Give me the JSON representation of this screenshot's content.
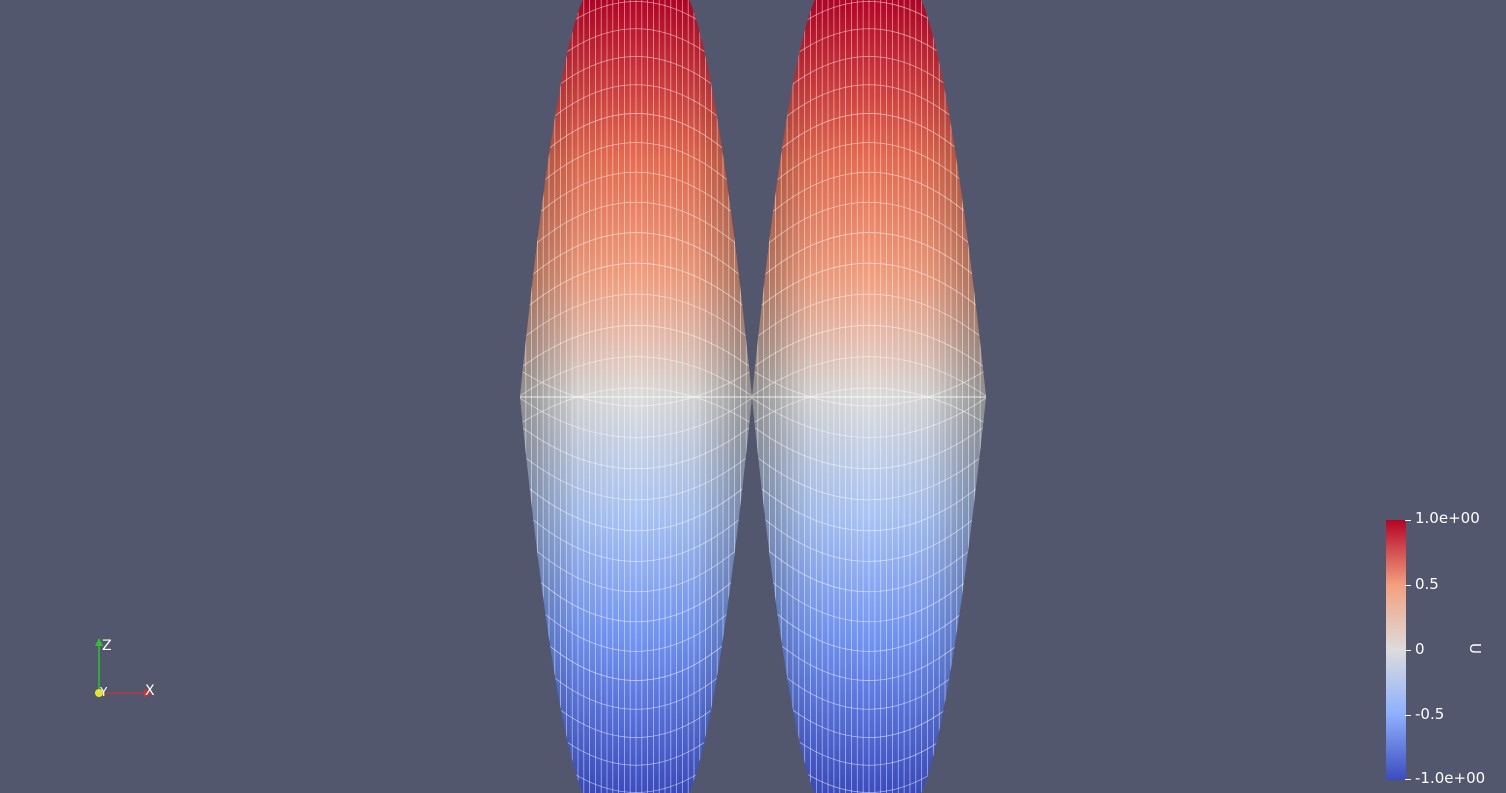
{
  "viewport": {
    "background_color": "#52576e"
  },
  "scene": {
    "surface_count": 2,
    "colormap": [
      "#3b4cc0",
      "#8daffd",
      "#dddcdc",
      "#f3a080",
      "#b40426"
    ]
  },
  "colorbar": {
    "title": "U",
    "labels": [
      "1.0e+00",
      "0.5",
      "0",
      "-0.5",
      "-1.0e+00"
    ],
    "range": [
      -1.0,
      1.0
    ]
  },
  "axes": {
    "x_label": "X",
    "y_label": "Y",
    "z_label": "Z",
    "x_color": "#d43030",
    "y_color": "#e6e62c",
    "z_color": "#30c030"
  }
}
